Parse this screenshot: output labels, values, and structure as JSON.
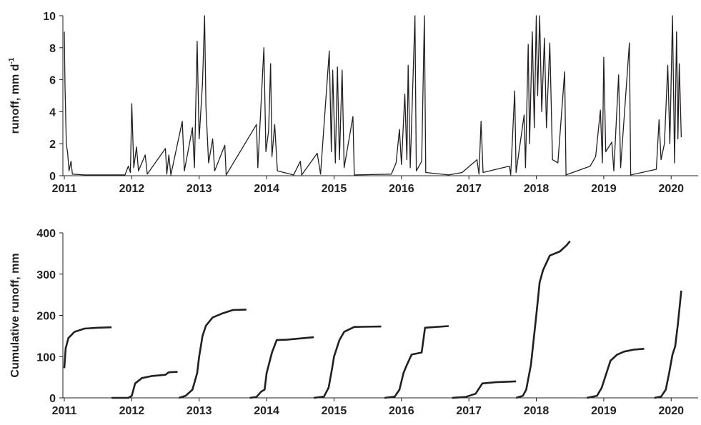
{
  "chart_data": [
    {
      "type": "line",
      "ylabel": "runoff, mm d",
      "ylabel_sup": "-1",
      "xlim": [
        2011,
        2020.4
      ],
      "ylim": [
        0,
        10
      ],
      "xticks": [
        2011,
        2012,
        2013,
        2014,
        2015,
        2016,
        2017,
        2018,
        2019,
        2020
      ],
      "yticks": [
        0,
        2,
        4,
        6,
        8,
        10
      ],
      "x": [
        2011.0,
        2011.01,
        2011.03,
        2011.05,
        2011.07,
        2011.1,
        2011.12,
        2011.3,
        2011.9,
        2011.95,
        2011.98,
        2012.0,
        2012.03,
        2012.07,
        2012.1,
        2012.2,
        2012.23,
        2012.5,
        2012.52,
        2012.55,
        2012.58,
        2012.75,
        2012.78,
        2012.9,
        2012.93,
        2012.97,
        2013.0,
        2013.05,
        2013.08,
        2013.1,
        2013.14,
        2013.2,
        2013.23,
        2013.38,
        2013.4,
        2013.85,
        2013.87,
        2013.96,
        2013.99,
        2014.03,
        2014.06,
        2014.08,
        2014.12,
        2014.16,
        2014.4,
        2014.5,
        2014.52,
        2014.75,
        2014.8,
        2014.93,
        2014.96,
        2014.98,
        2015.02,
        2015.05,
        2015.08,
        2015.12,
        2015.15,
        2015.28,
        2015.3,
        2015.85,
        2015.92,
        2015.97,
        2016.0,
        2016.05,
        2016.08,
        2016.1,
        2016.13,
        2016.2,
        2016.22,
        2016.3,
        2016.34,
        2016.36,
        2016.7,
        2016.9,
        2017.12,
        2017.15,
        2017.18,
        2017.21,
        2017.6,
        2017.62,
        2017.68,
        2017.7,
        2017.82,
        2017.84,
        2017.88,
        2017.9,
        2017.94,
        2017.97,
        2018.0,
        2018.02,
        2018.05,
        2018.08,
        2018.12,
        2018.15,
        2018.2,
        2018.24,
        2018.32,
        2018.42,
        2018.44,
        2018.8,
        2018.88,
        2018.95,
        2018.98,
        2019.0,
        2019.03,
        2019.12,
        2019.15,
        2019.22,
        2019.25,
        2019.38,
        2019.4,
        2019.78,
        2019.82,
        2019.85,
        2019.9,
        2019.95,
        2019.98,
        2020.02,
        2020.05,
        2020.08,
        2020.1,
        2020.12,
        2020.15
      ],
      "series": [
        {
          "color": "#231f20",
          "values": [
            9.0,
            5.8,
            2.0,
            1.4,
            0.3,
            0.9,
            0.1,
            0.05,
            0.05,
            0.6,
            0.2,
            4.5,
            0.5,
            1.8,
            0.3,
            1.3,
            0.1,
            1.7,
            0.1,
            1.3,
            0.05,
            3.4,
            0.3,
            3.0,
            0.5,
            8.4,
            2.3,
            5.8,
            10,
            4.3,
            0.8,
            2.3,
            0.3,
            1.9,
            0.05,
            3.2,
            0.5,
            8.0,
            1.5,
            2.8,
            7.0,
            1.2,
            3.2,
            0.3,
            0.05,
            0.9,
            0.05,
            1.4,
            0.1,
            7.8,
            1.5,
            6.6,
            0.8,
            6.8,
            1.0,
            6.6,
            0.5,
            3.7,
            0.05,
            0.1,
            0.8,
            2.9,
            0.7,
            5.1,
            1.0,
            6.9,
            0.5,
            10,
            0.3,
            0.9,
            10,
            0.2,
            0.05,
            0.2,
            1.0,
            0.1,
            3.4,
            0.2,
            0.6,
            0.05,
            5.3,
            0.2,
            3.8,
            0.5,
            8.2,
            2.0,
            9.0,
            3.0,
            10,
            5.0,
            10,
            4.0,
            8.6,
            3.0,
            8.3,
            1.0,
            0.8,
            6.5,
            0.05,
            0.6,
            1.2,
            4.1,
            0.8,
            7.4,
            1.5,
            2.1,
            0.3,
            6.3,
            0.5,
            8.3,
            0.05,
            0.4,
            3.5,
            1.0,
            2.0,
            6.9,
            2.0,
            10,
            0.8,
            9.0,
            2.3,
            7.0,
            2.4
          ]
        }
      ]
    },
    {
      "type": "line",
      "ylabel": "Cumulative runoff, mm",
      "xlim": [
        2011,
        2020.4
      ],
      "ylim": [
        0,
        400
      ],
      "xticks": [
        2011,
        2012,
        2013,
        2014,
        2015,
        2016,
        2017,
        2018,
        2019,
        2020
      ],
      "yticks": [
        0,
        100,
        200,
        300,
        400
      ],
      "x": [
        2011.0,
        2011.02,
        2011.06,
        2011.15,
        2011.3,
        2011.5,
        2011.7,
        null,
        2011.7,
        2011.95,
        2012.0,
        2012.05,
        2012.15,
        2012.3,
        2012.5,
        2012.55,
        2012.68,
        null,
        2012.7,
        2012.8,
        2012.9,
        2012.97,
        2013.0,
        2013.05,
        2013.1,
        2013.2,
        2013.35,
        2013.5,
        2013.7,
        null,
        2013.75,
        2013.85,
        2013.92,
        2013.97,
        2014.0,
        2014.08,
        2014.15,
        2014.3,
        2014.5,
        2014.7,
        null,
        2014.7,
        2014.85,
        2014.92,
        2014.97,
        2015.0,
        2015.08,
        2015.15,
        2015.3,
        2015.7,
        null,
        2015.75,
        2015.9,
        2015.97,
        2016.03,
        2016.08,
        2016.15,
        2016.3,
        2016.35,
        2016.7,
        null,
        2016.75,
        2016.95,
        2017.1,
        2017.2,
        2017.4,
        2017.7,
        null,
        2017.7,
        2017.8,
        2017.85,
        2017.92,
        2018.0,
        2018.05,
        2018.1,
        2018.2,
        2018.35,
        2018.45,
        2018.5,
        null,
        2018.75,
        2018.9,
        2018.97,
        2019.05,
        2019.1,
        2019.2,
        2019.3,
        2019.45,
        2019.6,
        null,
        2019.75,
        2019.85,
        2019.92,
        2019.97,
        2020.02,
        2020.06,
        2020.1,
        2020.15
      ],
      "series": [
        {
          "color": "#231f20",
          "values": [
            72,
            120,
            145,
            160,
            168,
            170,
            171,
            null,
            0,
            0,
            5,
            35,
            48,
            53,
            56,
            62,
            63,
            null,
            0,
            5,
            20,
            60,
            100,
            150,
            175,
            195,
            205,
            213,
            214,
            null,
            0,
            2,
            15,
            20,
            60,
            110,
            140,
            141,
            144,
            147,
            null,
            0,
            3,
            25,
            70,
            100,
            140,
            160,
            172,
            173,
            null,
            0,
            3,
            20,
            60,
            80,
            105,
            110,
            170,
            174,
            null,
            0,
            2,
            10,
            35,
            38,
            40,
            null,
            0,
            5,
            20,
            80,
            200,
            280,
            310,
            345,
            355,
            370,
            380,
            null,
            0,
            5,
            25,
            65,
            90,
            105,
            112,
            117,
            119,
            null,
            0,
            3,
            20,
            60,
            105,
            125,
            180,
            260
          ]
        }
      ]
    }
  ]
}
